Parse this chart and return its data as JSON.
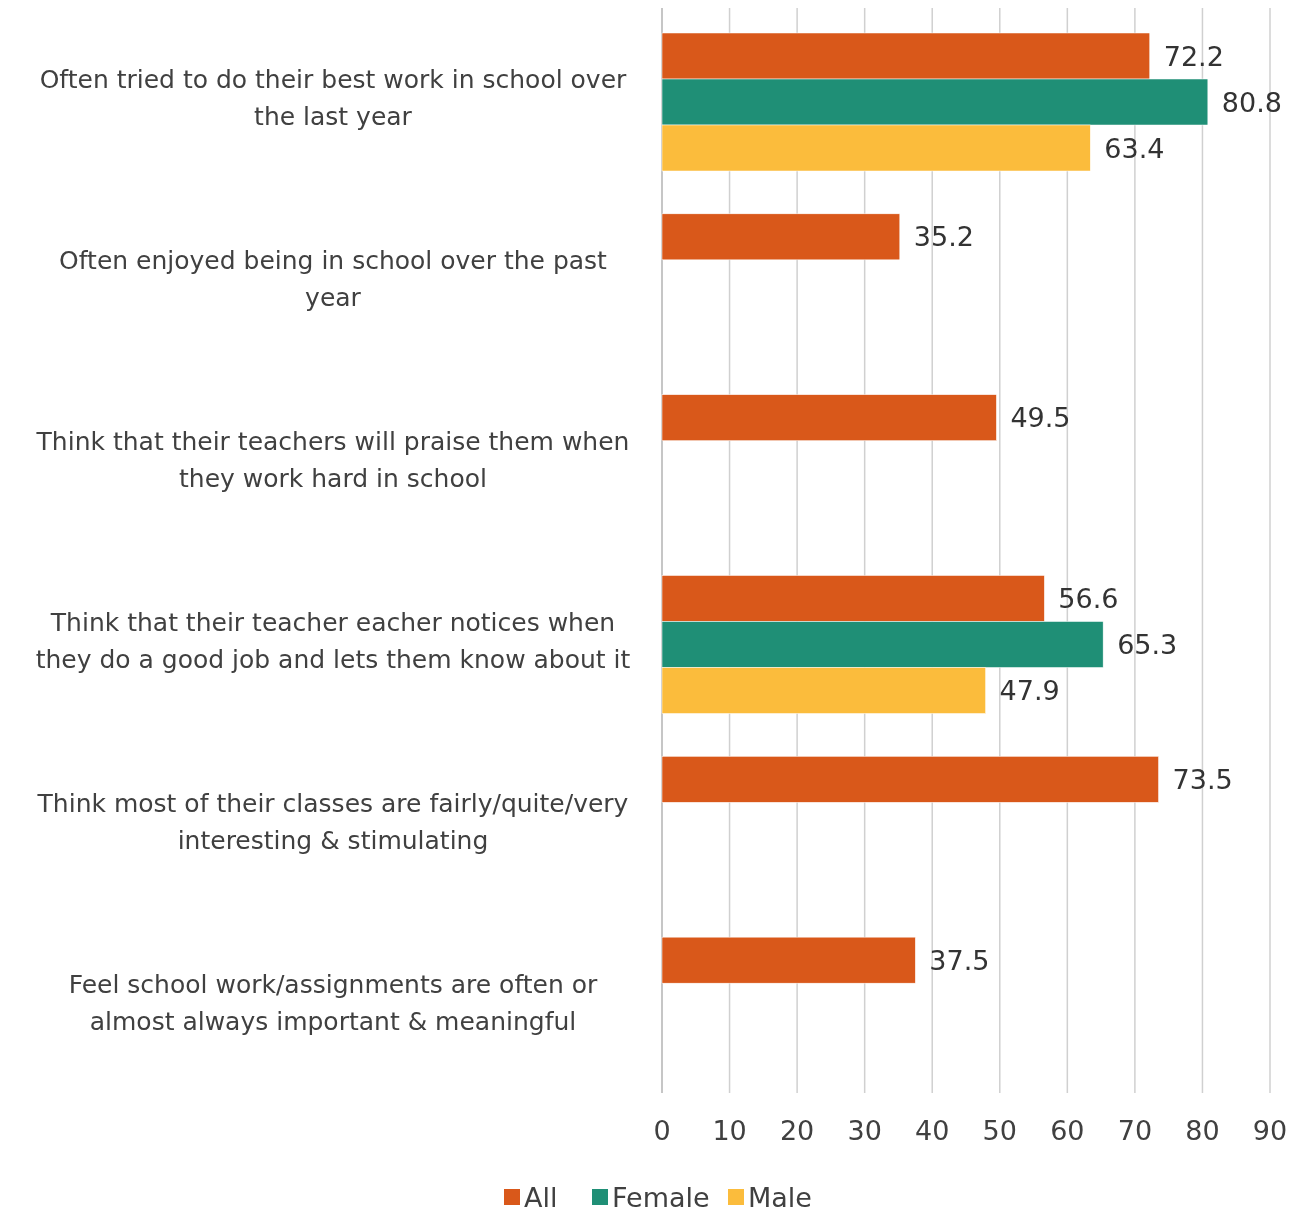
{
  "chart_data": {
    "type": "bar",
    "orientation": "horizontal",
    "categories": [
      "Often tried to do their best work in school over the last year",
      "Often enjoyed being in school over the past year",
      "Think that their teachers will praise them when they work hard in school",
      "Think that their teacher eacher notices when they do a good job and lets them know about it",
      "Think most of their classes are fairly/quite/very interesting & stimulating",
      "Feel school work/assignments are often or almost always important & meaningful"
    ],
    "series": [
      {
        "name": "All",
        "color": "#d9581a",
        "values": [
          72.2,
          35.2,
          49.5,
          56.6,
          73.5,
          37.5
        ]
      },
      {
        "name": "Female",
        "color": "#1f8f76",
        "values": [
          80.8,
          null,
          null,
          65.3,
          null,
          null
        ]
      },
      {
        "name": "Male",
        "color": "#fbbc3c",
        "values": [
          63.4,
          null,
          null,
          47.9,
          null,
          null
        ]
      }
    ],
    "xlim": [
      0,
      90
    ],
    "xticks": [
      0,
      10,
      20,
      30,
      40,
      50,
      60,
      70,
      80,
      90
    ],
    "grid": "x",
    "legend": "bottom",
    "data_labels": true
  }
}
